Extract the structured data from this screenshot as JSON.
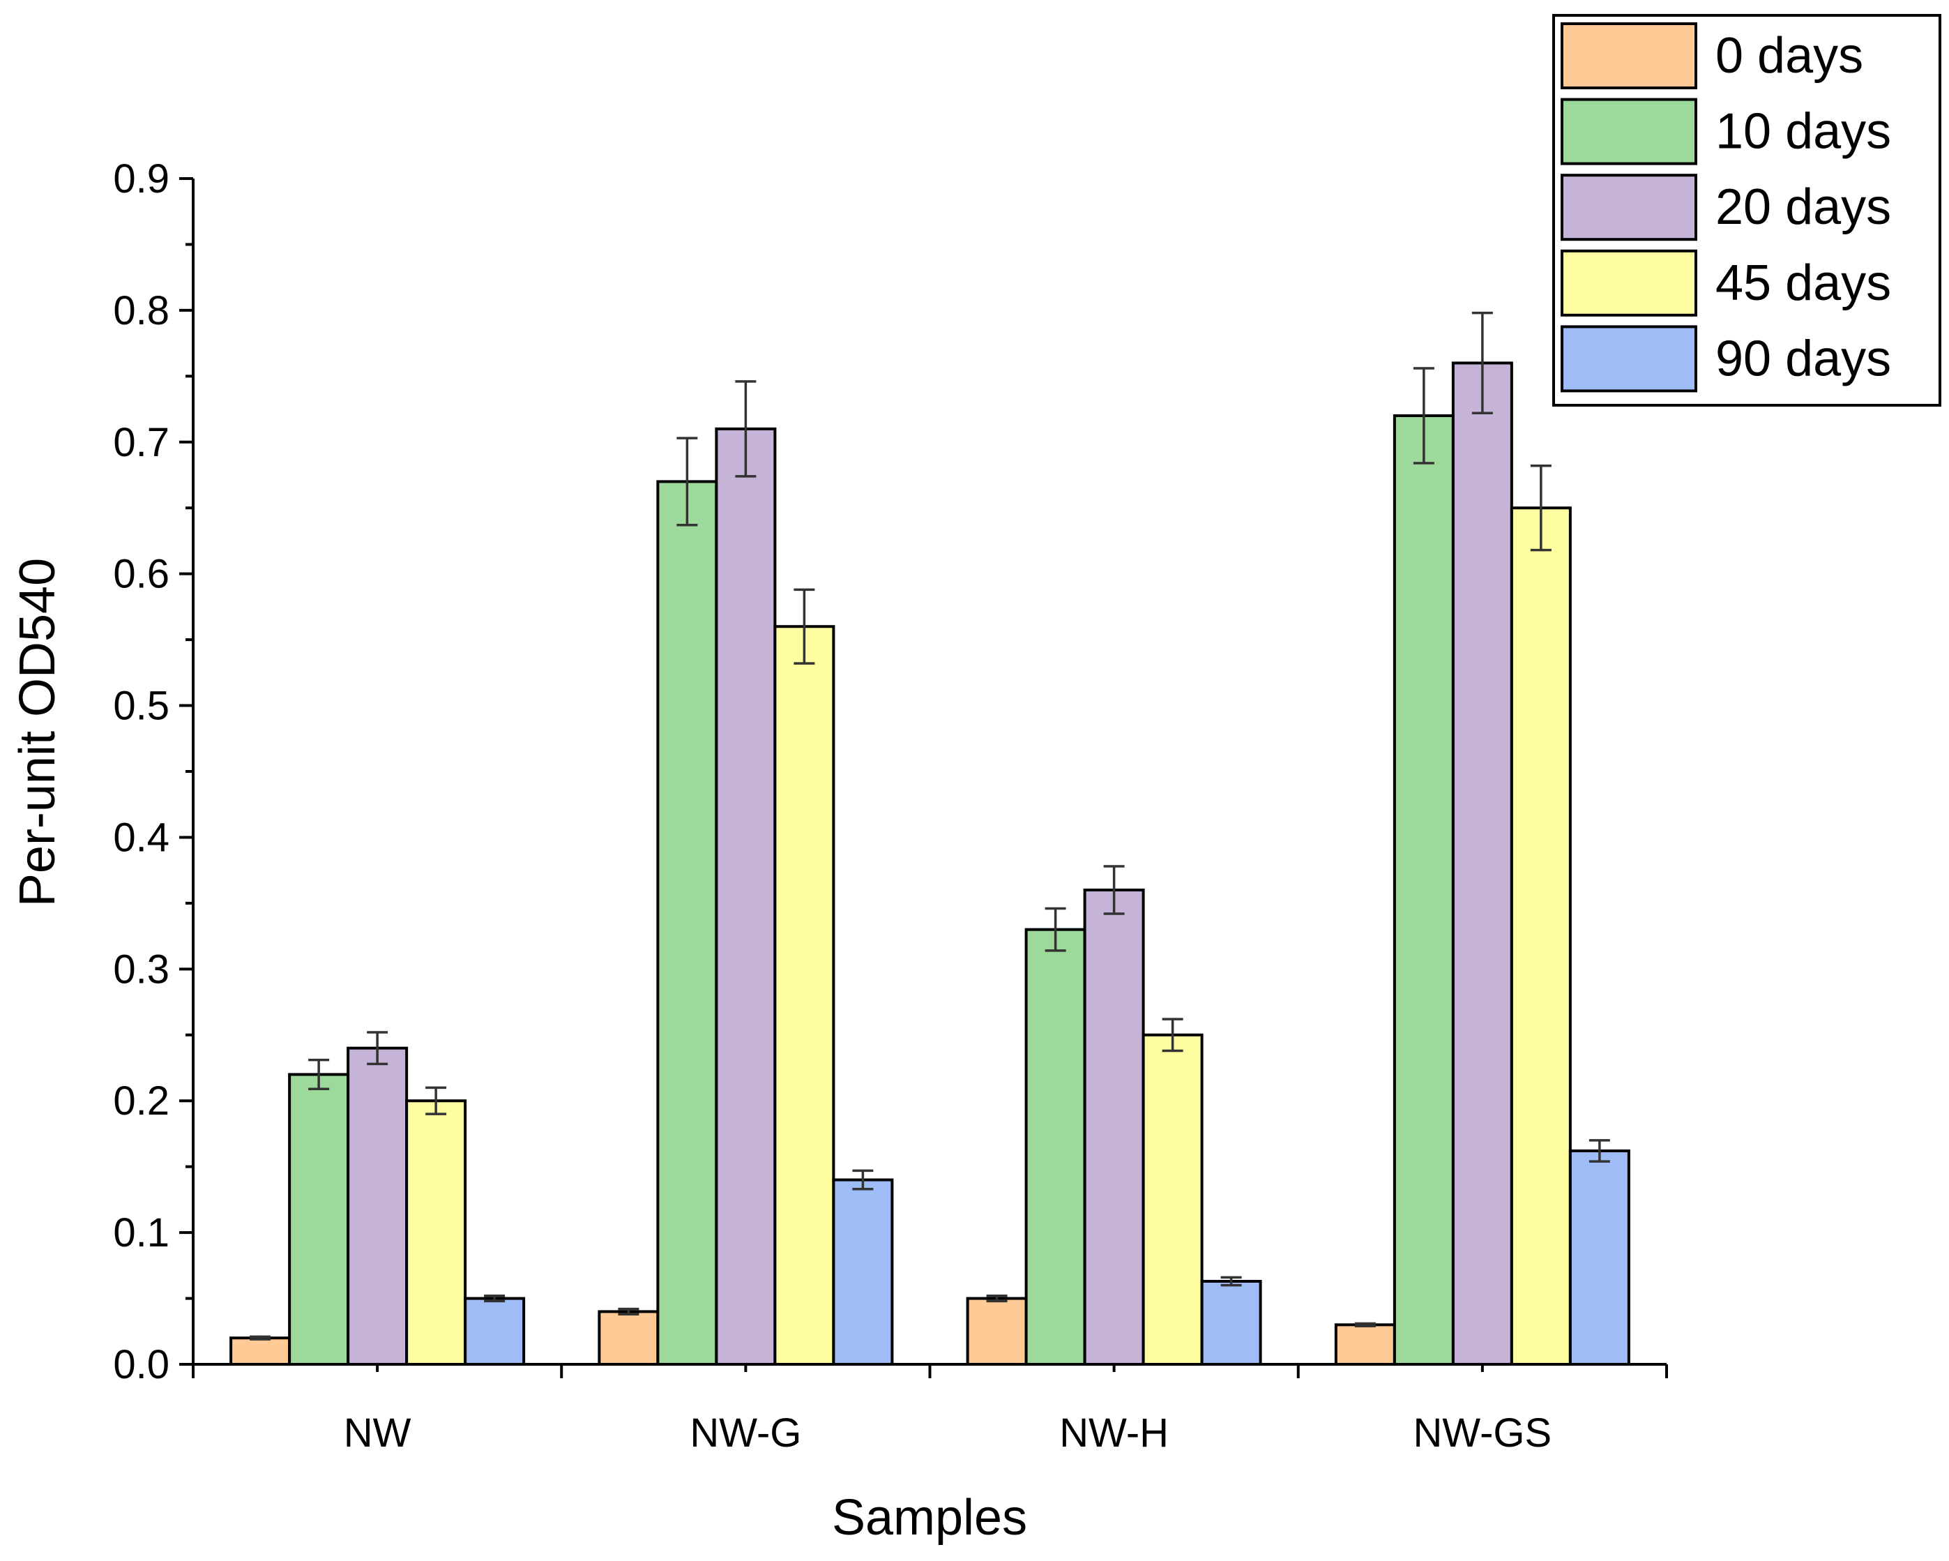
{
  "chart_data": {
    "type": "bar",
    "title": "",
    "xlabel": "Samples",
    "ylabel": "Per-unit OD540",
    "ylim": [
      0,
      0.9
    ],
    "yticks": [
      "0.0",
      "0.1",
      "0.2",
      "0.3",
      "0.4",
      "0.5",
      "0.6",
      "0.7",
      "0.8",
      "0.9"
    ],
    "categories": [
      "NW",
      "NW-G",
      "NW-H",
      "NW-GS"
    ],
    "series": [
      {
        "name": "0 days",
        "color": "#FFCA96",
        "values": [
          0.02,
          0.04,
          0.05,
          0.03
        ],
        "errors": [
          0.001,
          0.002,
          0.002,
          0.001
        ]
      },
      {
        "name": "10 days",
        "color": "#9DD99B",
        "values": [
          0.22,
          0.67,
          0.33,
          0.72
        ],
        "errors": [
          0.011,
          0.033,
          0.016,
          0.036
        ]
      },
      {
        "name": "20 days",
        "color": "#C5B3D8",
        "values": [
          0.24,
          0.71,
          0.36,
          0.76
        ],
        "errors": [
          0.012,
          0.036,
          0.018,
          0.038
        ]
      },
      {
        "name": "45 days",
        "color": "#FEFEA0",
        "values": [
          0.2,
          0.56,
          0.25,
          0.65
        ],
        "errors": [
          0.01,
          0.028,
          0.012,
          0.032
        ]
      },
      {
        "name": "90 days",
        "color": "#9EBCF6",
        "values": [
          0.05,
          0.14,
          0.063,
          0.162
        ],
        "errors": [
          0.002,
          0.007,
          0.003,
          0.008
        ]
      }
    ],
    "legend_position": "top-right",
    "grid": false
  }
}
